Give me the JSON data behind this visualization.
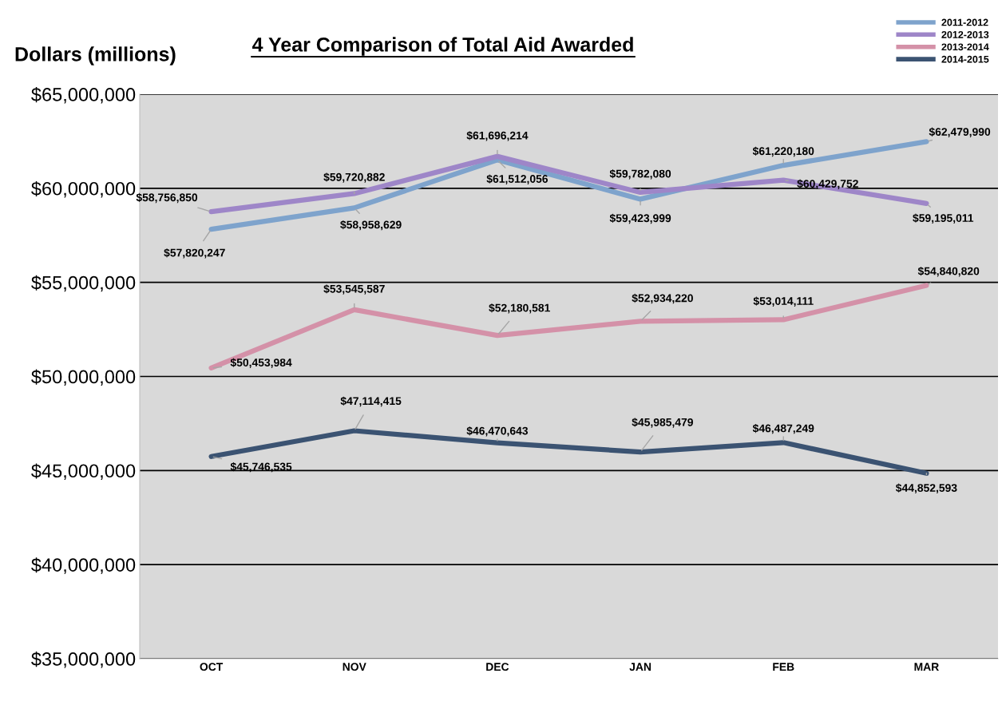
{
  "chart_data": {
    "type": "line",
    "title": "4 Year Comparison of Total Aid Awarded",
    "ylabel": "Dollars (millions)",
    "categories": [
      "OCT",
      "NOV",
      "DEC",
      "JAN",
      "FEB",
      "MAR"
    ],
    "ylim": [
      35000000,
      65000000
    ],
    "yticks": [
      {
        "value": 35000000,
        "label": "$35,000,000"
      },
      {
        "value": 40000000,
        "label": "$40,000,000"
      },
      {
        "value": 45000000,
        "label": "$45,000,000"
      },
      {
        "value": 50000000,
        "label": "$50,000,000"
      },
      {
        "value": 55000000,
        "label": "$55,000,000"
      },
      {
        "value": 60000000,
        "label": "$60,000,000"
      },
      {
        "value": 65000000,
        "label": "$65,000,000"
      }
    ],
    "grid": "y",
    "legend": "top right",
    "marker": "none",
    "line_style": "solid",
    "series": [
      {
        "name": "2011-2012",
        "color": "#7ea3cc",
        "values": [
          57820247,
          58958629,
          61512056,
          59423999,
          61220180,
          62479990
        ],
        "value_labels": [
          "$57,820,247",
          "$58,958,629",
          "$61,512,056",
          "$59,423,999",
          "$61,220,180",
          "$62,479,990"
        ]
      },
      {
        "name": "2012-2013",
        "color": "#9e86c8",
        "values": [
          58756850,
          59720882,
          61696214,
          59782080,
          60429752,
          59195011
        ],
        "value_labels": [
          "$58,756,850",
          "$59,720,882",
          "$61,696,214",
          "$59,782,080",
          "$60,429,752",
          "$59,195,011"
        ]
      },
      {
        "name": "2013-2014",
        "color": "#d491a8",
        "values": [
          50453984,
          53545587,
          52180581,
          52934220,
          53014111,
          54840820
        ],
        "value_labels": [
          "$50,453,984",
          "$53,545,587",
          "$52,180,581",
          "$52,934,220",
          "$53,014,111",
          "$54,840,820"
        ]
      },
      {
        "name": "2014-2015",
        "color": "#3b5372",
        "values": [
          45746535,
          47114415,
          46470643,
          45985479,
          46487249,
          44852593
        ],
        "value_labels": [
          "$45,746,535",
          "$47,114,415",
          "$46,470,643",
          "$45,985,479",
          "$46,487,249",
          "$44,852,593"
        ]
      }
    ]
  }
}
